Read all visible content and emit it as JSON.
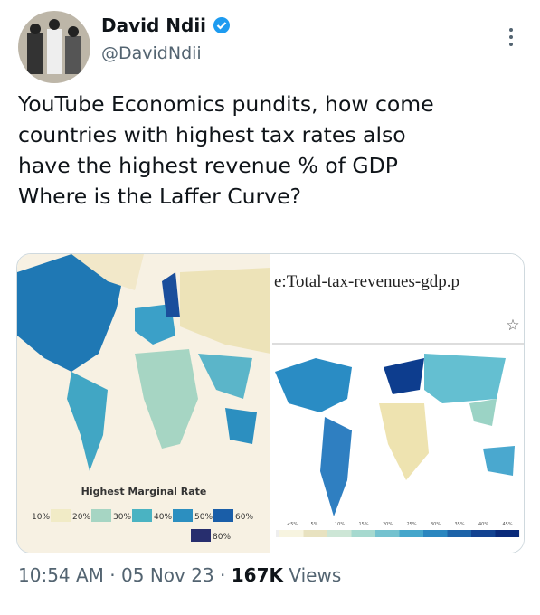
{
  "author": {
    "name": "David Ndii",
    "handle": "@DavidNdii"
  },
  "tweet": {
    "lines": [
      "YouTube Economics pundits, how come",
      "countries with highest tax rates also",
      "have the highest revenue % of GDP",
      "Where is the Laffer Curve?"
    ]
  },
  "images": [
    {
      "legend_title": "Highest Marginal Rate",
      "legend_labels": [
        "10%",
        "20%",
        "30%",
        "40%",
        "50%",
        "60%",
        "80%"
      ]
    },
    {
      "file_title": "e:Total-tax-revenues-gdp.p",
      "scale_labels": [
        "<5%",
        "5%",
        "10%",
        "15%",
        "20%",
        "25%",
        "30%",
        "35%",
        "40%",
        "45%"
      ]
    }
  ],
  "footer": {
    "time": "10:54 AM",
    "separator": "·",
    "date": "05 Nov 23",
    "views_count": "167K",
    "views_label": "Views"
  }
}
